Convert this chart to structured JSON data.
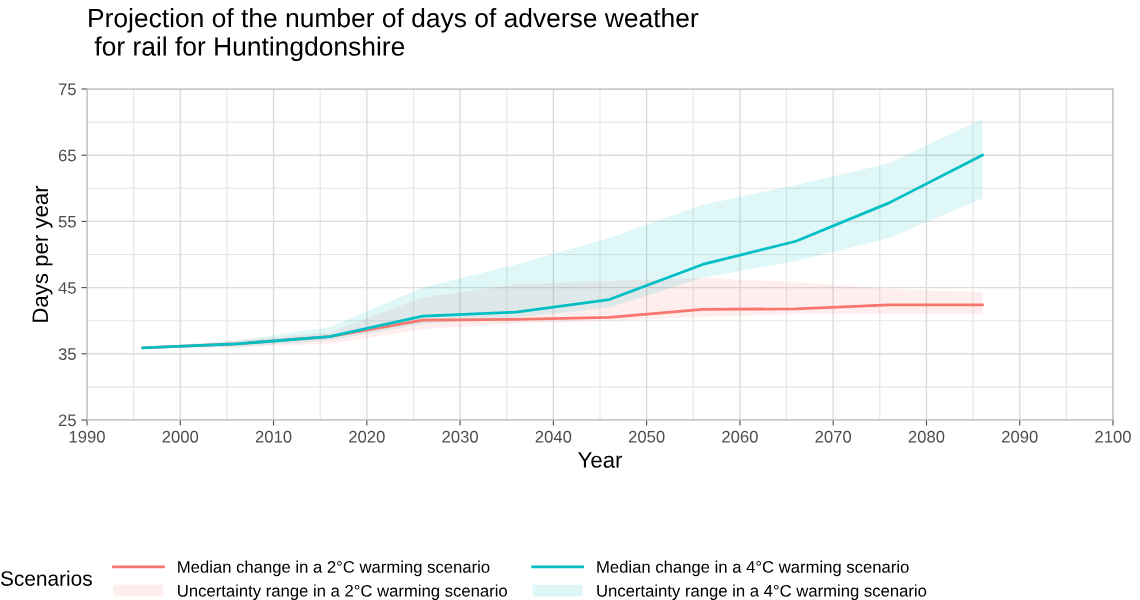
{
  "chart_data": {
    "type": "line",
    "title": "Projection of the number of days of adverse weather\n for rail for Huntingdonshire",
    "xlabel": "Year",
    "ylabel": "Days per year",
    "legend_title": "Scenarios",
    "legend": "bottom",
    "grid": true,
    "x": [
      1996,
      2006,
      2016,
      2026,
      2036,
      2046,
      2056,
      2066,
      2076,
      2086
    ],
    "xlim": [
      1990,
      2100
    ],
    "xticks": [
      1990,
      2000,
      2010,
      2020,
      2030,
      2040,
      2050,
      2060,
      2070,
      2080,
      2090,
      2100
    ],
    "ylim": [
      25,
      75
    ],
    "yticks": [
      25,
      35,
      45,
      55,
      65,
      75
    ],
    "annotations": [
      "Uncertainty range in a 2°C warming scenario",
      "Uncertainty range in a 4°C warming scenario"
    ],
    "series": [
      {
        "name": "Median change in a 2°C warming scenario",
        "color": "#f8766d",
        "values": [
          35.9,
          36.5,
          37.6,
          40.1,
          40.2,
          40.5,
          41.7,
          41.8,
          42.4,
          42.4
        ],
        "lower": [
          35.9,
          36.0,
          36.5,
          38.7,
          39.6,
          40.0,
          40.6,
          41.0,
          41.0,
          41.0
        ],
        "upper": [
          35.9,
          37.0,
          38.2,
          43.5,
          45.5,
          46.0,
          46.5,
          45.8,
          44.8,
          44.3
        ]
      },
      {
        "name": "Median change in a 4°C warming scenario",
        "color": "#00bfc4",
        "values": [
          35.9,
          36.5,
          37.6,
          40.7,
          41.3,
          43.2,
          48.5,
          52.0,
          57.8,
          65.0
        ],
        "lower": [
          35.9,
          36.0,
          37.0,
          39.5,
          40.5,
          42.0,
          46.5,
          49.0,
          52.5,
          58.5
        ],
        "upper": [
          35.9,
          37.0,
          39.0,
          45.0,
          48.5,
          52.5,
          57.5,
          60.5,
          63.8,
          70.5
        ]
      }
    ]
  }
}
